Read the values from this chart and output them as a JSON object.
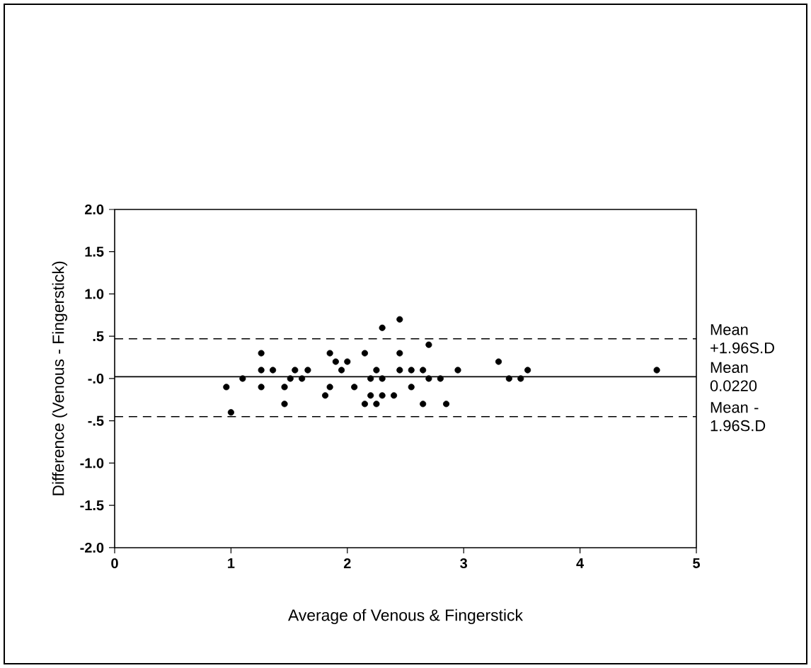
{
  "chart_data": {
    "type": "scatter",
    "xlabel": "Average of Venous & Fingerstick",
    "ylabel": "Difference (Venous - Fingerstick)",
    "xlim": [
      0,
      5
    ],
    "xticks": [
      0,
      1,
      2,
      3,
      4,
      5
    ],
    "ylim": [
      -2,
      2
    ],
    "yticks": [
      {
        "value": 2,
        "label": "2.0"
      },
      {
        "value": 1.5,
        "label": "1.5"
      },
      {
        "value": 1,
        "label": "1.0"
      },
      {
        "value": 0.5,
        "label": ".5"
      },
      {
        "value": 0,
        "label": "-.0"
      },
      {
        "value": -0.5,
        "label": "-.5"
      },
      {
        "value": -1,
        "label": "-1.0"
      },
      {
        "value": -1.5,
        "label": "-1.5"
      },
      {
        "value": -2,
        "label": "-2.0"
      }
    ],
    "grid": false,
    "marker": "circle",
    "series": [
      {
        "color": "#000000",
        "x": [
          0.96,
          1.0,
          1.1,
          1.26,
          1.26,
          1.26,
          1.36,
          1.46,
          1.46,
          1.51,
          1.55,
          1.61,
          1.66,
          1.81,
          1.85,
          1.85,
          1.9,
          1.95,
          2.0,
          2.06,
          2.15,
          2.15,
          2.2,
          2.2,
          2.25,
          2.25,
          2.3,
          2.3,
          2.3,
          2.4,
          2.45,
          2.45,
          2.45,
          2.55,
          2.55,
          2.65,
          2.65,
          2.7,
          2.7,
          2.8,
          2.85,
          2.95,
          3.3,
          3.39,
          3.49,
          3.55,
          4.66
        ],
        "values": [
          -0.1,
          -0.4,
          0.0,
          0.3,
          0.1,
          -0.1,
          0.1,
          -0.1,
          -0.3,
          0.0,
          0.1,
          0.0,
          0.1,
          -0.2,
          0.3,
          -0.1,
          0.2,
          0.1,
          0.2,
          -0.1,
          0.3,
          -0.3,
          0.0,
          -0.2,
          0.1,
          -0.3,
          0.6,
          0.0,
          -0.2,
          -0.2,
          0.7,
          0.3,
          0.1,
          0.1,
          -0.1,
          0.1,
          -0.3,
          0.4,
          0.0,
          0.0,
          -0.3,
          0.1,
          0.2,
          0.0,
          0.0,
          0.1,
          0.1
        ]
      }
    ],
    "ref_lines": [
      {
        "axis": "y",
        "value": 0.47,
        "label": "Mean +1.96S.D",
        "line_style": "dashed"
      },
      {
        "axis": "y",
        "value": 0.022,
        "label": "Mean 0.0220",
        "line_style": "solid"
      },
      {
        "axis": "y",
        "value": -0.45,
        "label": "Mean -1.96S.D",
        "line_style": "dashed"
      }
    ]
  }
}
